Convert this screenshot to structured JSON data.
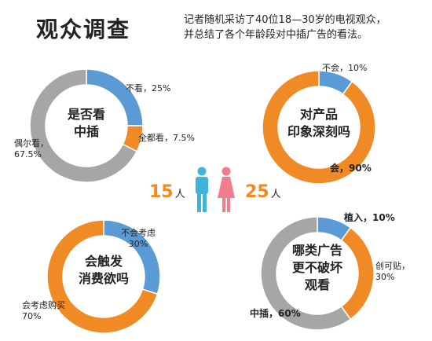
{
  "title": "观众调查",
  "intro": [
    "记者随机采访了40位18—30岁的电视观众，",
    "并总结了各个年龄段对中插广告的看法。"
  ],
  "counts": {
    "male": "15",
    "female": "25",
    "unit": "人"
  },
  "colors": {
    "blue": "#5b9bd5",
    "orange": "#f08a24",
    "gray": "#a6a6a6",
    "male": "#3fb4d6",
    "female": "#f27c8c"
  },
  "chart_data": [
    {
      "type": "pie",
      "title": "是否看中插",
      "series": [
        {
          "label": "不看，25%",
          "value": 25,
          "color": "#5b9bd5"
        },
        {
          "label": "全都看，7.5%",
          "value": 7.5,
          "color": "#f08a24"
        },
        {
          "label": "偶尔看，67.5%",
          "value": 67.5,
          "color": "#a6a6a6"
        }
      ]
    },
    {
      "type": "pie",
      "title": "对产品印象深刻吗",
      "series": [
        {
          "label": "不会，10%",
          "value": 10,
          "color": "#5b9bd5"
        },
        {
          "label": "会，90%",
          "value": 90,
          "color": "#f08a24"
        }
      ]
    },
    {
      "type": "pie",
      "title": "会触发消费欲吗",
      "series": [
        {
          "label": "不会考虑 30%",
          "value": 30,
          "color": "#5b9bd5"
        },
        {
          "label": "会考虑购买 70%",
          "value": 70,
          "color": "#f08a24"
        }
      ]
    },
    {
      "type": "pie",
      "title": "哪类广告更不破坏观看",
      "series": [
        {
          "label": "植入，10%",
          "value": 10,
          "color": "#5b9bd5"
        },
        {
          "label": "创可贴，30%",
          "value": 30,
          "color": "#f08a24"
        },
        {
          "label": "中插，60%",
          "value": 60,
          "color": "#a6a6a6"
        }
      ]
    }
  ]
}
